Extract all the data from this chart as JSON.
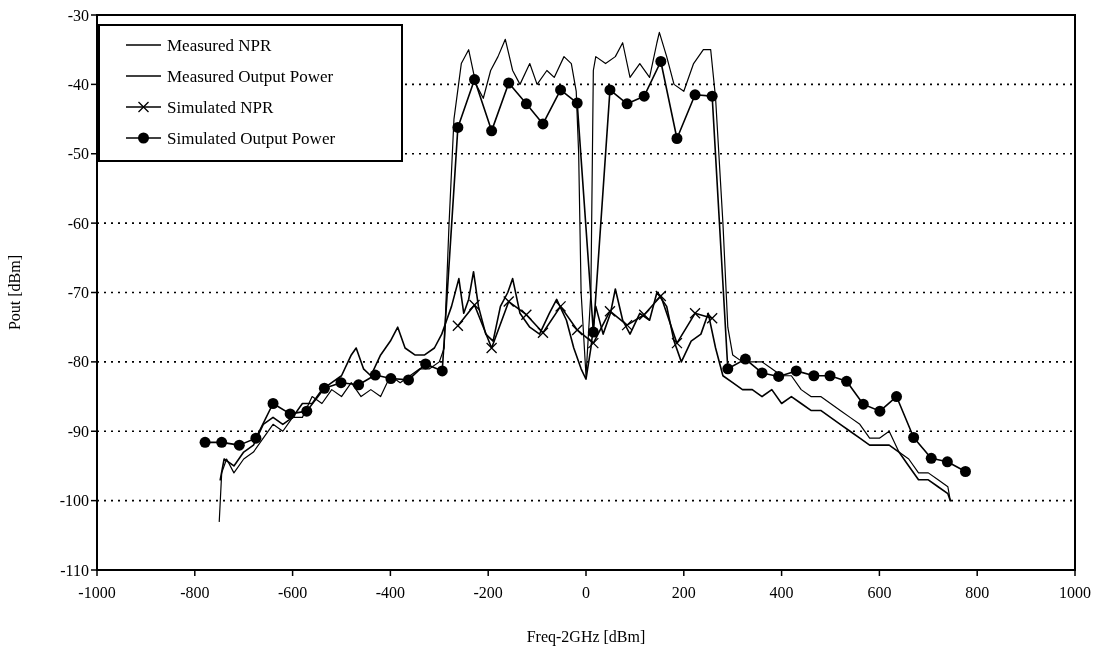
{
  "chart_data": {
    "type": "line",
    "xlabel": "Freq-2GHz [dBm]",
    "ylabel": "Pout [dBm]",
    "xlim": [
      -1000,
      1000
    ],
    "xticks": [
      -1000,
      -800,
      -600,
      -400,
      -200,
      0,
      200,
      400,
      600,
      800,
      1000
    ],
    "ylim": [
      -110,
      -30
    ],
    "yticks": [
      -110,
      -100,
      -90,
      -80,
      -70,
      -60,
      -50,
      -40,
      -30
    ],
    "grid": "y",
    "legend": "top left",
    "line_style": "solid",
    "series": [
      {
        "name": "Measured NPR",
        "color": "#000000",
        "marker": "none",
        "x": [
          -748,
          -740,
          -720,
          -700,
          -680,
          -660,
          -640,
          -620,
          -600,
          -580,
          -560,
          -540,
          -520,
          -500,
          -480,
          -470,
          -455,
          -440,
          -420,
          -400,
          -385,
          -370,
          -350,
          -330,
          -310,
          -295,
          -285,
          -275,
          -260,
          -250,
          -240,
          -230,
          -220,
          -205,
          -190,
          -175,
          -160,
          -150,
          -135,
          -115,
          -95,
          -75,
          -60,
          -40,
          -25,
          -10,
          0,
          10,
          20,
          35,
          50,
          60,
          75,
          90,
          110,
          130,
          145,
          165,
          180,
          195,
          215,
          235,
          250,
          265,
          280,
          300,
          320,
          340,
          360,
          380,
          400,
          420,
          440,
          460,
          480,
          500,
          520,
          540,
          560,
          580,
          600,
          620,
          640,
          660,
          680,
          700,
          720,
          740,
          745
        ],
        "values": [
          -97,
          -94,
          -95,
          -93,
          -92,
          -89,
          -88,
          -89,
          -88,
          -86,
          -86,
          -84,
          -83,
          -82,
          -79,
          -78,
          -81,
          -82,
          -79,
          -77,
          -75,
          -78,
          -79,
          -79,
          -78,
          -76,
          -74,
          -72,
          -68,
          -73,
          -71,
          -67,
          -72,
          -76,
          -77,
          -72,
          -70,
          -68,
          -73,
          -75,
          -76,
          -73,
          -71,
          -74,
          -78,
          -81,
          -82.5,
          -78,
          -72,
          -76,
          -73,
          -69.5,
          -74,
          -76,
          -73,
          -74,
          -70,
          -72,
          -77,
          -80,
          -77,
          -76,
          -73,
          -78,
          -82,
          -83,
          -84,
          -84,
          -85,
          -84,
          -86,
          -85,
          -86,
          -87,
          -87,
          -88,
          -89,
          -90,
          -91,
          -92,
          -92,
          -92,
          -93,
          -95,
          -97,
          -97,
          -98,
          -99,
          -100
        ]
      },
      {
        "name": "Measured Output Power",
        "color": "#000000",
        "marker": "none",
        "x": [
          -750,
          -745,
          -735,
          -720,
          -700,
          -680,
          -660,
          -640,
          -620,
          -600,
          -580,
          -560,
          -540,
          -520,
          -500,
          -480,
          -460,
          -440,
          -420,
          -400,
          -380,
          -360,
          -340,
          -320,
          -300,
          -290,
          -280,
          -270,
          -255,
          -240,
          -225,
          -210,
          -195,
          -180,
          -165,
          -150,
          -135,
          -115,
          -100,
          -80,
          -65,
          -45,
          -30,
          -20,
          -15,
          -10,
          0,
          10,
          15,
          20,
          40,
          60,
          75,
          90,
          110,
          130,
          145,
          150,
          165,
          180,
          200,
          220,
          240,
          255,
          265,
          280,
          290,
          300,
          320,
          340,
          360,
          380,
          400,
          420,
          440,
          460,
          480,
          500,
          520,
          540,
          560,
          580,
          600,
          620,
          640,
          660,
          680,
          700,
          720,
          740,
          745
        ],
        "values": [
          -103,
          -96,
          -94,
          -96,
          -94,
          -93,
          -91,
          -89,
          -90,
          -88,
          -88,
          -85,
          -86,
          -84,
          -85,
          -83,
          -85,
          -84,
          -85,
          -82,
          -83,
          -82,
          -81,
          -81,
          -80,
          -78,
          -60,
          -45,
          -37,
          -35,
          -40,
          -42,
          -38,
          -36,
          -33.5,
          -38,
          -40,
          -37,
          -40,
          -38,
          -39,
          -36,
          -37,
          -41,
          -50,
          -70,
          -82,
          -70,
          -38,
          -36,
          -37,
          -36,
          -34,
          -39,
          -37,
          -39,
          -34,
          -32.5,
          -36,
          -40,
          -41,
          -37,
          -35,
          -35,
          -42,
          -60,
          -75,
          -79,
          -80,
          -80,
          -80,
          -81,
          -82,
          -82,
          -84,
          -85,
          -85,
          -86,
          -87,
          -88,
          -89,
          -91,
          -91,
          -90,
          -93,
          -94,
          -96,
          -96,
          -97,
          -98,
          -100
        ]
      },
      {
        "name": "Simulated NPR",
        "color": "#000000",
        "marker": "cross",
        "x": [
          -262,
          -228,
          -193,
          -158,
          -122,
          -88,
          -52,
          -18,
          15,
          49,
          84,
          119,
          153,
          186,
          223,
          258
        ],
        "values": [
          -74.8,
          -71.8,
          -78,
          -71.3,
          -73.2,
          -75.8,
          -72,
          -75.4,
          -77.3,
          -72.7,
          -74.7,
          -73.2,
          -70.5,
          -77.3,
          -73,
          -73.7
        ]
      },
      {
        "name": "Simulated Output Power",
        "color": "#000000",
        "marker": "circle",
        "x": [
          -779,
          -745,
          -709,
          -675,
          -640,
          -605,
          -571,
          -535,
          -501,
          -465,
          -431,
          -399,
          -363,
          -328,
          -294,
          -262,
          -228,
          -193,
          -158,
          -122,
          -88,
          -52,
          -18,
          15,
          49,
          84,
          119,
          153,
          186,
          223,
          258,
          290,
          326,
          360,
          394,
          430,
          466,
          499,
          533,
          567,
          601,
          635,
          670,
          706,
          739,
          776
        ],
        "values": [
          -91.6,
          -91.6,
          -92,
          -91,
          -86,
          -87.5,
          -87.1,
          -83.8,
          -83,
          -83.3,
          -81.9,
          -82.4,
          -82.6,
          -80.3,
          -81.3,
          -46.2,
          -39.3,
          -46.7,
          -39.8,
          -42.8,
          -45.7,
          -40.8,
          -42.7,
          -75.7,
          -40.8,
          -42.8,
          -41.7,
          -36.7,
          -47.8,
          -41.5,
          -41.7,
          -81,
          -79.6,
          -81.6,
          -82.1,
          -81.3,
          -82,
          -82,
          -82.8,
          -86.1,
          -87.1,
          -85,
          -90.9,
          -93.9,
          -94.4,
          -95.8
        ]
      }
    ]
  }
}
